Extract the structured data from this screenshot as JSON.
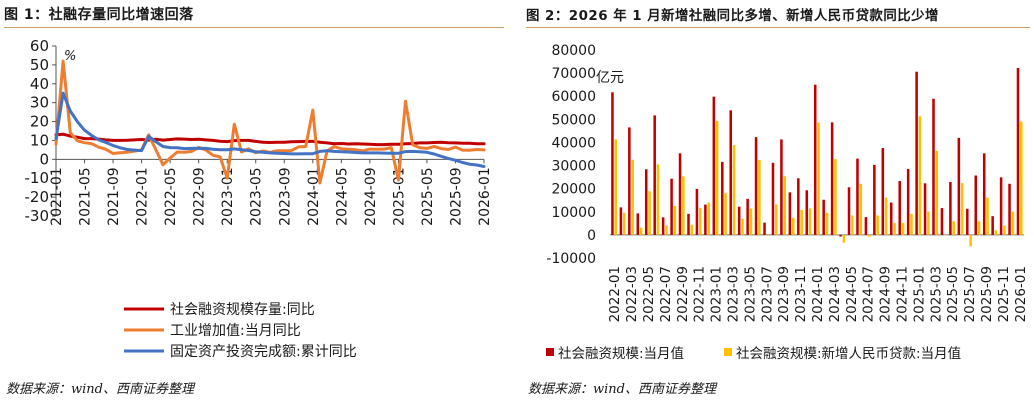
{
  "figures": [
    {
      "title": "图 1：社融存量同比增速回落",
      "source": "数据来源：wind、西南证券整理"
    },
    {
      "title": "图 2：2026 年 1 月新增社融同比多增、新增人民币贷款同比少增",
      "source": "数据来源：wind、西南证券整理"
    }
  ],
  "chart_data": [
    {
      "type": "line",
      "unit_label": "%",
      "ylim": [
        -30,
        60
      ],
      "yticks": [
        -30,
        -20,
        -10,
        0,
        10,
        20,
        30,
        40,
        50,
        60
      ],
      "xticks": [
        "2021-01",
        "2021-05",
        "2021-09",
        "2022-01",
        "2022-05",
        "2022-09",
        "2023-01",
        "2023-05",
        "2023-09",
        "2024-01",
        "2024-05",
        "2024-09",
        "2025-01",
        "2025-05",
        "2025-09",
        "2026-01"
      ],
      "x": [
        "2021-01",
        "2021-02",
        "2021-03",
        "2021-04",
        "2021-05",
        "2021-06",
        "2021-07",
        "2021-08",
        "2021-09",
        "2021-10",
        "2021-11",
        "2021-12",
        "2022-01",
        "2022-02",
        "2022-03",
        "2022-04",
        "2022-05",
        "2022-06",
        "2022-07",
        "2022-08",
        "2022-09",
        "2022-10",
        "2022-11",
        "2022-12",
        "2023-01",
        "2023-02",
        "2023-03",
        "2023-04",
        "2023-05",
        "2023-06",
        "2023-07",
        "2023-08",
        "2023-09",
        "2023-10",
        "2023-11",
        "2023-12",
        "2024-01",
        "2024-02",
        "2024-03",
        "2024-04",
        "2024-05",
        "2024-06",
        "2024-07",
        "2024-08",
        "2024-09",
        "2024-10",
        "2024-11",
        "2024-12",
        "2025-01",
        "2025-02",
        "2025-03",
        "2025-04",
        "2025-05",
        "2025-06",
        "2025-07",
        "2025-08",
        "2025-09",
        "2025-10",
        "2025-11",
        "2025-12",
        "2026-01"
      ],
      "grid": false,
      "legend_position": "bottom",
      "series": [
        {
          "name": "社会融资规模存量:同比",
          "color": "#c00000",
          "values": [
            13.0,
            13.3,
            12.3,
            11.7,
            11.0,
            11.0,
            10.7,
            10.3,
            10.0,
            10.0,
            10.1,
            10.3,
            10.5,
            10.2,
            10.6,
            10.2,
            10.5,
            10.8,
            10.7,
            10.5,
            10.6,
            10.3,
            10.0,
            9.6,
            9.4,
            9.9,
            10.0,
            10.0,
            9.5,
            9.0,
            8.9,
            9.0,
            9.0,
            9.3,
            9.4,
            9.5,
            9.5,
            9.0,
            8.7,
            8.3,
            8.4,
            8.1,
            8.2,
            8.1,
            8.0,
            7.8,
            7.8,
            8.0,
            8.0,
            8.2,
            8.4,
            8.7,
            8.7,
            8.9,
            9.0,
            8.8,
            8.7,
            8.5,
            8.5,
            8.3,
            8.2
          ]
        },
        {
          "name": "工业增加值:当月同比",
          "color": "#ed7d31",
          "values": [
            8.0,
            52.0,
            14.1,
            9.8,
            8.8,
            8.3,
            6.4,
            5.3,
            3.1,
            3.5,
            3.8,
            4.3,
            5.0,
            13.0,
            5.0,
            -2.9,
            0.7,
            3.9,
            3.8,
            4.2,
            6.3,
            5.0,
            2.2,
            1.3,
            -10.0,
            18.6,
            3.9,
            5.6,
            3.5,
            4.4,
            3.7,
            4.5,
            4.5,
            4.6,
            6.6,
            6.8,
            26.0,
            -12.5,
            4.5,
            6.7,
            5.6,
            5.3,
            5.1,
            4.5,
            5.4,
            5.3,
            5.4,
            6.2,
            -11.0,
            30.7,
            7.7,
            6.1,
            5.8,
            6.8,
            5.7,
            5.2,
            6.5,
            4.9,
            4.8,
            5.2,
            5.0
          ]
        },
        {
          "name": "固定资产投资完成额:累计同比",
          "color": "#4472c4",
          "values": [
            11.0,
            35.0,
            25.6,
            19.9,
            15.4,
            12.6,
            10.3,
            8.9,
            7.3,
            6.1,
            5.2,
            4.9,
            4.6,
            12.2,
            9.3,
            6.8,
            6.2,
            6.1,
            5.7,
            5.8,
            5.9,
            5.8,
            5.3,
            5.1,
            5.1,
            5.5,
            5.1,
            4.7,
            4.0,
            3.8,
            3.4,
            3.2,
            3.1,
            2.9,
            2.9,
            3.0,
            3.0,
            4.2,
            4.5,
            4.2,
            4.0,
            3.9,
            3.6,
            3.4,
            3.4,
            3.4,
            3.3,
            3.2,
            3.2,
            4.1,
            4.2,
            4.0,
            3.7,
            2.8,
            1.6,
            0.5,
            -0.5,
            -1.7,
            -2.6,
            -3.0,
            -3.8
          ]
        }
      ]
    },
    {
      "type": "bar",
      "unit_label": "亿元",
      "ylim": [
        -10000,
        80000
      ],
      "yticks": [
        -10000,
        0,
        10000,
        20000,
        30000,
        40000,
        50000,
        60000,
        70000,
        80000
      ],
      "xticks": [
        "2022-01",
        "2022-03",
        "2022-05",
        "2022-07",
        "2022-09",
        "2022-11",
        "2023-01",
        "2023-03",
        "2023-05",
        "2023-07",
        "2023-09",
        "2023-11",
        "2024-01",
        "2024-03",
        "2024-05",
        "2024-07",
        "2024-09",
        "2024-11",
        "2025-01",
        "2025-03",
        "2025-05",
        "2025-07",
        "2025-09",
        "2025-11",
        "2026-01"
      ],
      "categories": [
        "2022-01",
        "2022-02",
        "2022-03",
        "2022-04",
        "2022-05",
        "2022-06",
        "2022-07",
        "2022-08",
        "2022-09",
        "2022-10",
        "2022-11",
        "2022-12",
        "2023-01",
        "2023-02",
        "2023-03",
        "2023-04",
        "2023-05",
        "2023-06",
        "2023-07",
        "2023-08",
        "2023-09",
        "2023-10",
        "2023-11",
        "2023-12",
        "2024-01",
        "2024-02",
        "2024-03",
        "2024-04",
        "2024-05",
        "2024-06",
        "2024-07",
        "2024-08",
        "2024-09",
        "2024-10",
        "2024-11",
        "2024-12",
        "2025-01",
        "2025-02",
        "2025-03",
        "2025-04",
        "2025-05",
        "2025-06",
        "2025-07",
        "2025-08",
        "2025-09",
        "2025-10",
        "2025-11",
        "2025-12",
        "2026-01"
      ],
      "grid": false,
      "legend_position": "bottom",
      "series": [
        {
          "name": "社会融资规模:当月值",
          "color": "#c00000",
          "values": [
            61700,
            11900,
            46500,
            9300,
            28400,
            51700,
            7600,
            24300,
            35300,
            9100,
            19900,
            13100,
            59800,
            31600,
            53900,
            12200,
            15600,
            42300,
            5300,
            31200,
            41300,
            18400,
            24500,
            19300,
            65000,
            15200,
            48700,
            -700,
            20600,
            33000,
            7700,
            30300,
            37600,
            14000,
            23300,
            28500,
            70600,
            22300,
            58900,
            11600,
            22900,
            42000,
            11300,
            25700,
            35300,
            8100,
            24900,
            22100,
            72200
          ]
        },
        {
          "name": "社会融资规模:新增人民币贷款:当月值",
          "color": "#ffc000",
          "values": [
            41300,
            9600,
            32500,
            3100,
            18900,
            30500,
            4100,
            12500,
            25300,
            4400,
            11700,
            14000,
            49300,
            18100,
            38900,
            7000,
            11400,
            32400,
            -300,
            13200,
            25400,
            7400,
            10800,
            11500,
            48600,
            9500,
            32800,
            -3400,
            8400,
            22100,
            -800,
            8400,
            16100,
            5100,
            5200,
            9100,
            51300,
            10100,
            36400,
            -100,
            5900,
            22400,
            -5000,
            5900,
            16100,
            2000,
            4100,
            10100,
            49000
          ]
        }
      ]
    }
  ]
}
